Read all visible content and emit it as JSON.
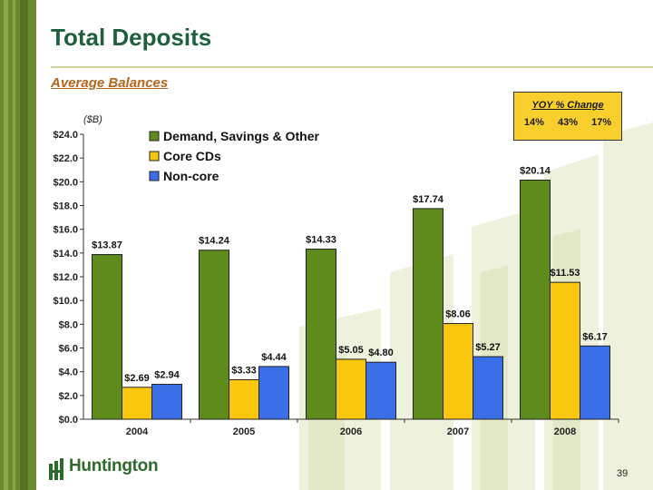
{
  "header": {
    "title": "Total Deposits",
    "subtitle": "Average Balances"
  },
  "yoy": {
    "title": "YOY % Change",
    "values": [
      "14%",
      "43%",
      "17%"
    ]
  },
  "footer": {
    "logo_text": "Huntington",
    "page_number": "39"
  },
  "colors": {
    "demand": "#5f8a1c",
    "core_cds": "#f9c80e",
    "noncore": "#3b6fe8",
    "brand_green": "#1f5f3c",
    "accent_orange": "#b5651d"
  },
  "chart_data": {
    "type": "bar",
    "unit_label": "($B)",
    "categories": [
      "2004",
      "2005",
      "2006",
      "2007",
      "2008"
    ],
    "series": [
      {
        "name": "Demand, Savings & Other",
        "color": "#5f8a1c",
        "values": [
          13.87,
          14.24,
          14.33,
          17.74,
          20.14
        ],
        "labels": [
          "$13.87",
          "$14.24",
          "$14.33",
          "$17.74",
          "$20.14"
        ]
      },
      {
        "name": "Core CDs",
        "color": "#f9c80e",
        "values": [
          2.69,
          3.33,
          5.05,
          8.06,
          11.53
        ],
        "labels": [
          "$2.69",
          "$3.33",
          "$5.05",
          "$8.06",
          "$11.53"
        ]
      },
      {
        "name": "Non-core",
        "color": "#3b6fe8",
        "values": [
          2.94,
          4.44,
          4.8,
          5.27,
          6.17
        ],
        "labels": [
          "$2.94",
          "$4.44",
          "$4.80",
          "$5.27",
          "$6.17"
        ]
      }
    ],
    "ylim": [
      0,
      24
    ],
    "yticks": [
      "$0.0",
      "$2.0",
      "$4.0",
      "$6.0",
      "$8.0",
      "$10.0",
      "$12.0",
      "$14.0",
      "$16.0",
      "$18.0",
      "$20.0",
      "$22.0",
      "$24.0"
    ],
    "ytick_values": [
      0,
      2,
      4,
      6,
      8,
      10,
      12,
      14,
      16,
      18,
      20,
      22,
      24
    ],
    "grid": false,
    "legend_position": "top-left"
  }
}
